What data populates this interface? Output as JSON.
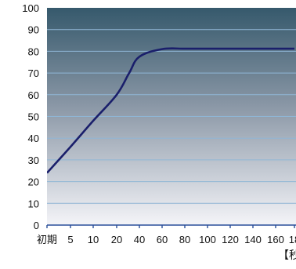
{
  "chart_data": {
    "type": "line",
    "x_ticks": [
      "初期",
      "5",
      "10",
      "20",
      "40",
      "60",
      "80",
      "100",
      "120",
      "140",
      "160",
      "18"
    ],
    "y_ticks": [
      0,
      10,
      20,
      30,
      40,
      50,
      60,
      70,
      80,
      90,
      100
    ],
    "ylim": [
      0,
      100
    ],
    "xlabel": "【秒",
    "ylabel": "",
    "grid": true,
    "series": [
      {
        "color": "#1a1f6b",
        "points": [
          {
            "x": "初期",
            "y": 24
          },
          {
            "x": "5",
            "y": 36
          },
          {
            "x": "10",
            "y": 48
          },
          {
            "x": "20",
            "y": 60
          },
          {
            "x": "20",
            "y": 70
          },
          {
            "x": "40",
            "y": 77.5
          },
          {
            "x": "60",
            "y": 81
          },
          {
            "x": "80",
            "y": 81.2
          },
          {
            "x": "100",
            "y": 81.2
          },
          {
            "x": "120",
            "y": 81.2
          },
          {
            "x": "140",
            "y": 81.2
          },
          {
            "x": "160",
            "y": 81.2
          },
          {
            "x": "18",
            "y": 81.2
          }
        ]
      }
    ],
    "colors": {
      "plot_top": "#36596c",
      "plot_bottom": "#f4f4f8",
      "gridline": "#8fb6d6",
      "axis": "#2a4f9a",
      "tick_label": "#111111"
    }
  }
}
